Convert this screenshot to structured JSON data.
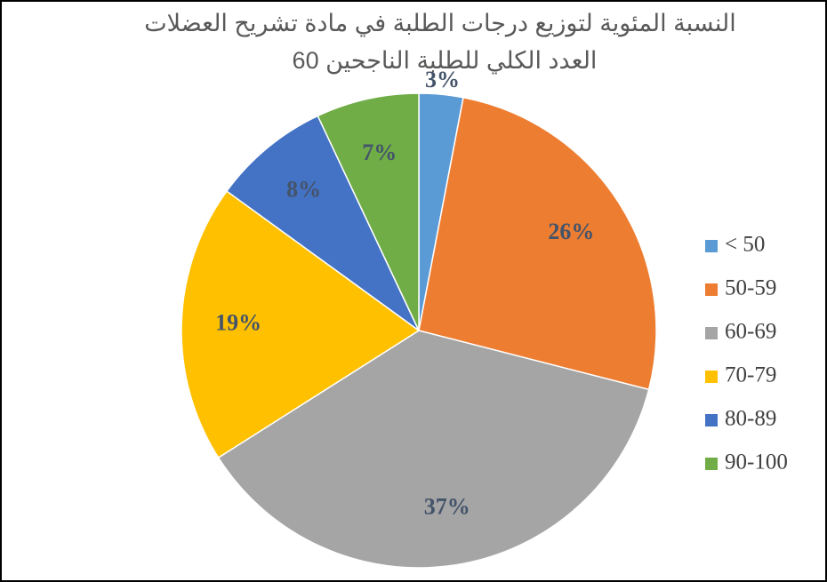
{
  "chart_data": {
    "type": "pie",
    "title": "النسبة المئوية لتوزيع درجات الطلبة في مادة تشريح العضلات",
    "subtitle": "العدد الكلي للطلبة الناجحين 60",
    "categories": [
      "< 50",
      "50-59",
      "60-69",
      "70-79",
      "80-89",
      "90-100"
    ],
    "values": [
      3,
      26,
      37,
      19,
      8,
      7
    ],
    "value_labels": [
      "3%",
      "26%",
      "37%",
      "19%",
      "8%",
      "7%"
    ],
    "colors": [
      "#5b9bd5",
      "#ed7d31",
      "#a5a5a5",
      "#ffc000",
      "#4472c4",
      "#70ad47"
    ],
    "legend": "right"
  }
}
